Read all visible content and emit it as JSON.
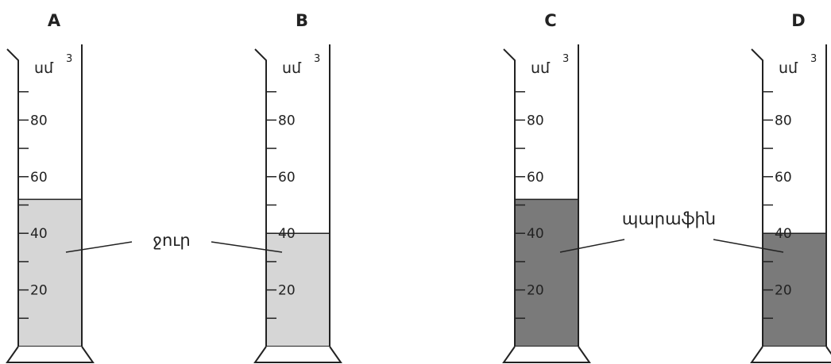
{
  "unit": "սմ",
  "unit_power": "3",
  "scale_labels": [
    "80",
    "60",
    "40",
    "20"
  ],
  "liquid_labels": {
    "water": "ջուր",
    "paraffin": "պարաֆին"
  },
  "colors": {
    "water_fill": "#d6d6d6",
    "paraffin_fill": "#7a7a7a",
    "outline": "#222222"
  },
  "cylinders": [
    {
      "id": "A",
      "label": "A",
      "liquid": "water",
      "level_cm3": 52
    },
    {
      "id": "B",
      "label": "B",
      "liquid": "water",
      "level_cm3": 40
    },
    {
      "id": "C",
      "label": "C",
      "liquid": "paraffin",
      "level_cm3": 52
    },
    {
      "id": "D",
      "label": "D",
      "liquid": "paraffin",
      "level_cm3": 40
    }
  ]
}
